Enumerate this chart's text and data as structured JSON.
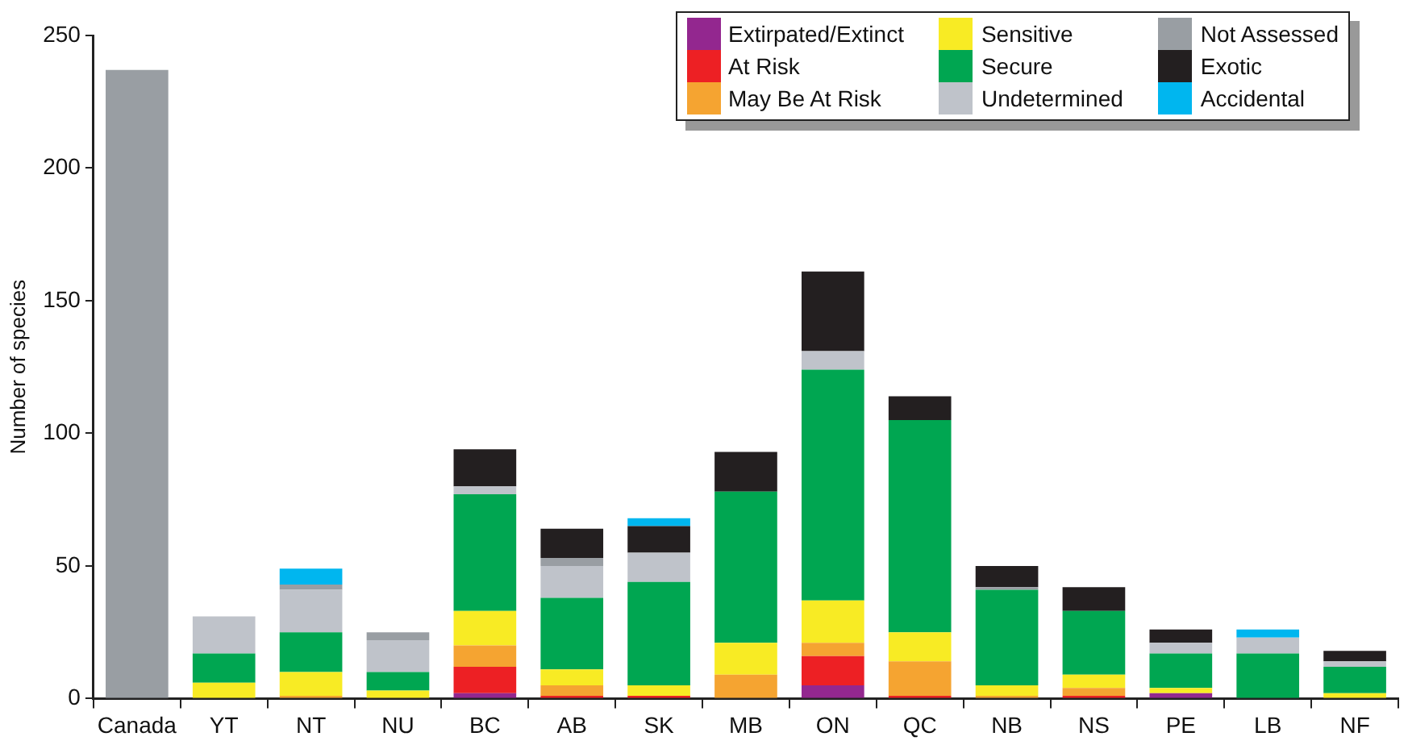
{
  "chart_data": {
    "type": "bar",
    "stacked": true,
    "ylabel": "Number of species",
    "categories": [
      "Canada",
      "YT",
      "NT",
      "NU",
      "BC",
      "AB",
      "SK",
      "MB",
      "ON",
      "QC",
      "NB",
      "NS",
      "PE",
      "LB",
      "NF"
    ],
    "ylim": [
      0,
      250
    ],
    "yticks": [
      0,
      50,
      100,
      150,
      200,
      250
    ],
    "grid": false,
    "legend": "top right",
    "series": [
      {
        "name": "Extirpated/Extinct",
        "color": "#93278f",
        "values": [
          0,
          0,
          0,
          0,
          2,
          0,
          0,
          0,
          5,
          0,
          0,
          0,
          2,
          0,
          0
        ]
      },
      {
        "name": "At Risk",
        "color": "#ed2024",
        "values": [
          0,
          0,
          0,
          0,
          10,
          1,
          1,
          0,
          11,
          1,
          0,
          1,
          0,
          0,
          0
        ]
      },
      {
        "name": "May Be At Risk",
        "color": "#f5a431",
        "values": [
          0,
          0,
          1,
          0,
          8,
          4,
          0,
          9,
          5,
          13,
          1,
          3,
          0,
          0,
          0
        ]
      },
      {
        "name": "Sensitive",
        "color": "#f8eb24",
        "values": [
          0,
          6,
          9,
          3,
          13,
          6,
          4,
          12,
          16,
          11,
          4,
          5,
          2,
          0,
          2
        ]
      },
      {
        "name": "Secure",
        "color": "#00a651",
        "values": [
          0,
          11,
          15,
          7,
          44,
          27,
          39,
          57,
          87,
          80,
          36,
          24,
          13,
          17,
          10
        ]
      },
      {
        "name": "Undetermined",
        "color": "#bfc3ca",
        "values": [
          0,
          14,
          16,
          12,
          3,
          12,
          11,
          0,
          7,
          0,
          0,
          0,
          4,
          6,
          2
        ]
      },
      {
        "name": "Not Assessed",
        "color": "#999ea3",
        "values": [
          237,
          0,
          2,
          3,
          0,
          3,
          0,
          0,
          0,
          0,
          1,
          0,
          0,
          0,
          0
        ]
      },
      {
        "name": "Exotic",
        "color": "#231f20",
        "values": [
          0,
          0,
          0,
          0,
          14,
          11,
          10,
          15,
          30,
          9,
          8,
          9,
          5,
          0,
          4
        ]
      },
      {
        "name": "Accidental",
        "color": "#00b6ef",
        "values": [
          0,
          0,
          6,
          0,
          0,
          0,
          3,
          0,
          0,
          0,
          0,
          0,
          0,
          3,
          0
        ]
      }
    ]
  }
}
